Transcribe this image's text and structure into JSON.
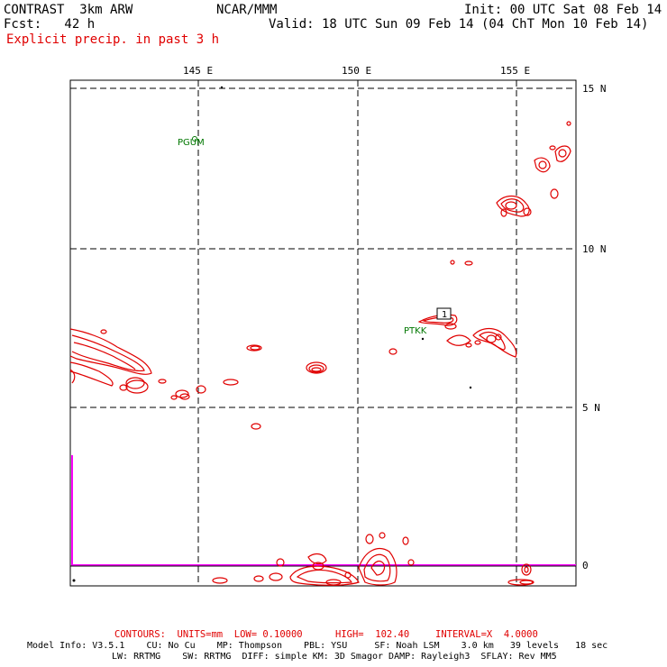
{
  "header": {
    "model": "CONTRAST  3km ARW",
    "org": "NCAR/MMM",
    "init": "Init: 00 UTC Sat 08 Feb 14",
    "fcst": "Fcst:   42 h",
    "valid": "Valid: 18 UTC Sun 09 Feb 14 (04 ChT Mon 10 Feb 14)",
    "field": "Explicit precip. in past 3 h"
  },
  "axes": {
    "lon_labels": [
      "145 E",
      "150 E",
      "155 E"
    ],
    "lat_labels": [
      "15 N",
      "10 N",
      "5 N",
      "0"
    ]
  },
  "stations": [
    {
      "id": "PGUM"
    },
    {
      "id": "PTKK"
    }
  ],
  "max_marker": "1",
  "footer": {
    "contours_prefix": "CONTOURS:  UNITS=mm  LOW= 0.10000",
    "contours_high": "HIGH=  102.40",
    "contours_interval": "INTERVAL=X  4.0000",
    "line1": "Model Info: V3.5.1    CU: No Cu    MP: Thompson    PBL: YSU     SF: Noah LSM    3.0 km   39 levels   18 sec",
    "line2": "LW: RRTMG    SW: RRTMG  DIFF: simple KM: 3D Smagor DAMP: Rayleigh3  SFLAY: Rev MM5"
  },
  "colors": {
    "contour": "#e00000",
    "station": "#007700",
    "magenta_line": "#ff00ff",
    "grid": "#000000"
  }
}
